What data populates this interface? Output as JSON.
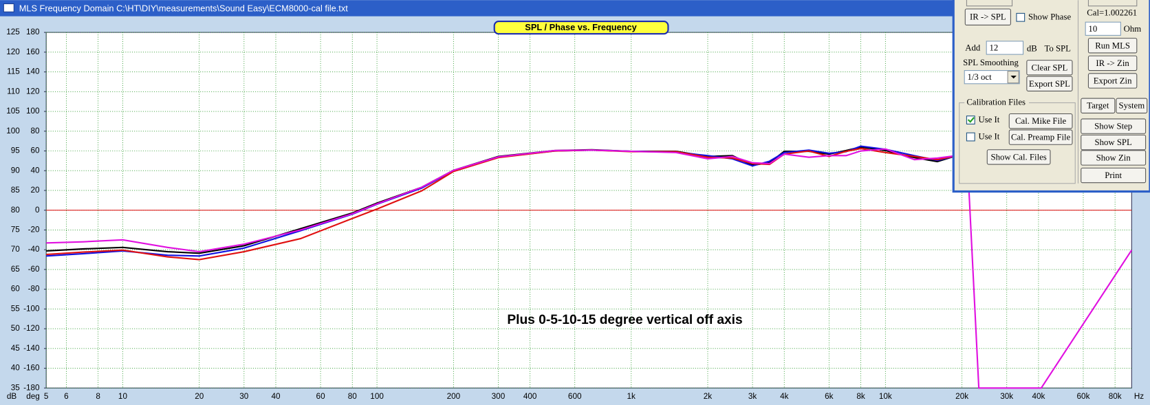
{
  "window": {
    "title": "MLS Frequency Domain  C:\\HT\\DIY\\measurements\\Sound Easy\\ECM8000-cal file.txt"
  },
  "controls": {
    "ir_spl": "IR -> SPL",
    "show_phase": "Show Phase",
    "cal": "Cal=1.002261",
    "ohm_value": "10",
    "ohm": "Ohm",
    "add": "Add",
    "add_value": "12",
    "db": "dB",
    "to_spl": "To SPL",
    "run_mls": "Run MLS",
    "smoothing": "SPL Smoothing",
    "clear_spl": "Clear SPL",
    "ir_zin": "IR -> Zin",
    "smoothing_value": "1/3 oct",
    "export_spl": "Export SPL",
    "export_zin": "Export Zin",
    "calibration_files": "Calibration Files",
    "use_it_1": "Use It",
    "cal_mike": "Cal. Mike File",
    "target": "Target",
    "system": "System",
    "use_it_2": "Use It",
    "cal_preamp": "Cal. Preamp File",
    "show_step": "Show Step",
    "show_spl": "Show SPL",
    "show_cal": "Show Cal. Files",
    "show_zin": "Show Zin",
    "print": "Print"
  },
  "chart_data": {
    "type": "line",
    "title": "SPL / Phase vs. Frequency",
    "annotation": "Plus 0-5-10-15 degree vertical off axis",
    "x_label": "Hz",
    "y_label": "dB",
    "y2_label": "deg",
    "xscale": "log",
    "grid": true,
    "reference_line": 80,
    "x": [
      5,
      7,
      10,
      15,
      20,
      30,
      50,
      80,
      100,
      150,
      200,
      300,
      500,
      700,
      1000,
      1500,
      2000,
      2500,
      3000,
      3500,
      4000,
      5000,
      6000,
      7000,
      8000,
      10000,
      13000,
      16000,
      20000,
      21000,
      23300,
      41000,
      93000
    ],
    "xlim": [
      5,
      93000
    ],
    "xticks": [
      5,
      6,
      8,
      10,
      20,
      30,
      40,
      60,
      80,
      100,
      200,
      300,
      400,
      600,
      {
        "value": 1000,
        "label": "1k"
      },
      {
        "value": 2000,
        "label": "2k"
      },
      {
        "value": 3000,
        "label": "3k"
      },
      {
        "value": 4000,
        "label": "4k"
      },
      {
        "value": 6000,
        "label": "6k"
      },
      {
        "value": 8000,
        "label": "8k"
      },
      {
        "value": 10000,
        "label": "10k"
      },
      {
        "value": 20000,
        "label": "20k"
      },
      {
        "value": 30000,
        "label": "30k"
      },
      {
        "value": 40000,
        "label": "40k"
      },
      {
        "value": 60000,
        "label": "60k"
      },
      {
        "value": 80000,
        "label": "80k"
      }
    ],
    "ylim": [
      35,
      125
    ],
    "yticks": [
      125,
      120,
      115,
      110,
      105,
      100,
      95,
      90,
      85,
      80,
      75,
      70,
      65,
      60,
      55,
      50,
      45,
      40,
      35
    ],
    "y2lim": [
      -180,
      180
    ],
    "y2ticks": [
      180,
      160,
      140,
      120,
      100,
      80,
      60,
      40,
      20,
      0,
      -20,
      -40,
      -60,
      -80,
      -100,
      -120,
      -140,
      -160,
      -180
    ],
    "series": [
      {
        "name": "0 degree",
        "color": "#000000",
        "values": [
          69.7,
          70.2,
          70.6,
          69.5,
          69.1,
          71.0,
          75.3,
          79.3,
          81.8,
          85.8,
          90.1,
          93.6,
          95.1,
          95.3,
          94.9,
          94.9,
          93.6,
          93.8,
          91.4,
          92.0,
          94.9,
          94.9,
          94.2,
          95.1,
          96.0,
          95.1,
          93.3,
          92.3,
          94.2,
          null,
          null,
          null,
          null
        ]
      },
      {
        "name": "5 degree",
        "color": "#1010e0",
        "values": [
          68.4,
          69.0,
          69.7,
          68.6,
          68.4,
          70.4,
          74.8,
          79.0,
          81.5,
          85.6,
          90.0,
          93.4,
          95.0,
          95.2,
          94.9,
          94.7,
          93.8,
          93.0,
          91.2,
          92.4,
          94.6,
          95.2,
          94.4,
          94.8,
          96.2,
          95.4,
          93.8,
          92.6,
          94.0,
          null,
          null,
          null,
          null
        ]
      },
      {
        "name": "10 degree",
        "color": "#e01010",
        "values": [
          68.8,
          69.4,
          69.9,
          68.2,
          67.5,
          69.5,
          72.8,
          77.9,
          80.3,
          84.9,
          89.8,
          93.3,
          95.0,
          95.2,
          94.8,
          94.8,
          93.4,
          93.2,
          91.8,
          91.6,
          94.2,
          95.0,
          93.6,
          94.9,
          95.6,
          94.6,
          93.6,
          92.8,
          94.0,
          null,
          null,
          null,
          null
        ]
      },
      {
        "name": "15 degree",
        "color": "#e010e0",
        "values": [
          71.7,
          72.0,
          72.5,
          70.6,
          69.5,
          71.4,
          75.0,
          79.1,
          81.6,
          85.8,
          90.1,
          93.5,
          95.1,
          95.2,
          94.9,
          94.6,
          93.0,
          93.6,
          92.0,
          91.8,
          94.2,
          93.4,
          93.8,
          93.8,
          95.0,
          95.5,
          92.8,
          93.2,
          94.0,
          93.0,
          35,
          35,
          69.9
        ]
      }
    ]
  }
}
